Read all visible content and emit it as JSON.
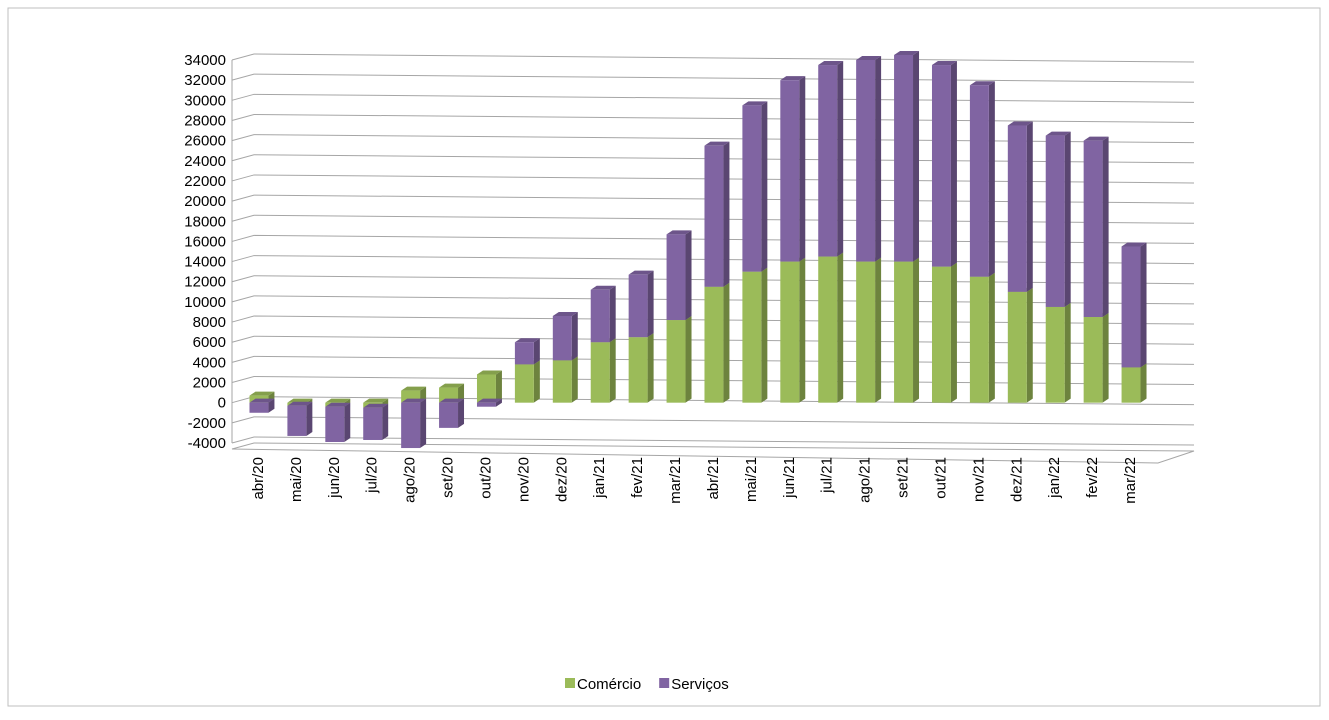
{
  "chart_data": {
    "type": "bar3d_stacked",
    "categories": [
      "abr/20",
      "mai/20",
      "jun/20",
      "jul/20",
      "ago/20",
      "set/20",
      "out/20",
      "nov/20",
      "dez/20",
      "jan/21",
      "fev/21",
      "mar/21",
      "abr/21",
      "mai/21",
      "jun/21",
      "jul/21",
      "ago/21",
      "set/21",
      "out/21",
      "nov/21",
      "dez/21",
      "jan/22",
      "fev/22",
      "mar/22"
    ],
    "series": [
      {
        "name": "Comércio",
        "color": "#9bbb59",
        "values": [
          700,
          -300,
          -400,
          -500,
          1200,
          1500,
          2800,
          3800,
          4200,
          6000,
          6500,
          8200,
          11500,
          13000,
          14000,
          14500,
          14000,
          14000,
          13500,
          12500,
          11000,
          9500,
          8500,
          3500
        ]
      },
      {
        "name": "Serviços",
        "color": "#8064a2",
        "values": [
          -1000,
          -3000,
          -3500,
          -3200,
          -4500,
          -2500,
          -400,
          2200,
          4400,
          5200,
          6200,
          8500,
          14000,
          16500,
          18000,
          19000,
          20000,
          20500,
          20000,
          19000,
          16500,
          17000,
          17500,
          12000
        ]
      }
    ],
    "ylim": [
      -4000,
      34000
    ],
    "yticks": [
      -4000,
      -2000,
      0,
      2000,
      4000,
      6000,
      8000,
      10000,
      12000,
      14000,
      16000,
      18000,
      20000,
      22000,
      24000,
      26000,
      28000,
      30000,
      32000,
      34000
    ],
    "grid": true,
    "legend": "bottom"
  }
}
